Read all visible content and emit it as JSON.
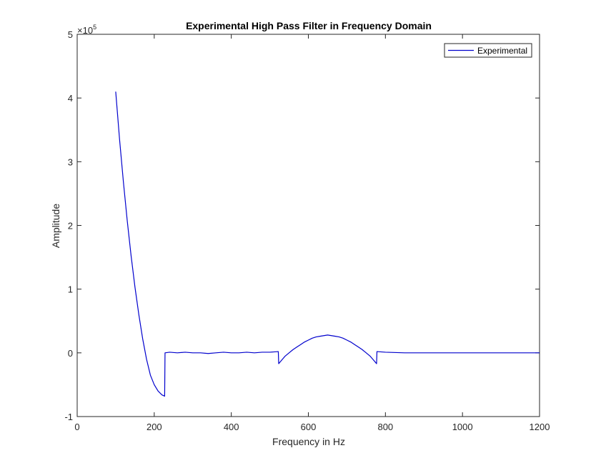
{
  "chart_data": {
    "type": "line",
    "title": "Experimental High Pass Filter in Frequency Domain",
    "xlabel": "Frequency in Hz",
    "ylabel": "Amplitude",
    "y_exponent_label": "×10",
    "y_exponent_power": "5",
    "xlim": [
      0,
      1200
    ],
    "ylim": [
      -1,
      5
    ],
    "x_ticks": [
      0,
      200,
      400,
      600,
      800,
      1000,
      1200
    ],
    "x_tick_labels": [
      "0",
      "200",
      "400",
      "600",
      "800",
      "1000",
      "1200"
    ],
    "y_ticks": [
      -1,
      0,
      1,
      2,
      3,
      4,
      5
    ],
    "y_tick_labels": [
      "-1",
      "0",
      "1",
      "2",
      "3",
      "4",
      "5"
    ],
    "grid": false,
    "legend_position": "top-right",
    "series": [
      {
        "name": "Experimental",
        "color": "#0000cd",
        "x": [
          100,
          110,
          120,
          130,
          140,
          150,
          160,
          170,
          180,
          190,
          200,
          210,
          220,
          227,
          228,
          240,
          260,
          280,
          300,
          320,
          340,
          360,
          380,
          400,
          420,
          440,
          460,
          480,
          500,
          522,
          523,
          530,
          540,
          550,
          560,
          570,
          580,
          590,
          600,
          610,
          620,
          630,
          640,
          650,
          660,
          670,
          680,
          690,
          700,
          710,
          720,
          730,
          740,
          750,
          760,
          770,
          777,
          778,
          800,
          850,
          900,
          950,
          1000,
          1050,
          1100,
          1150,
          1200
        ],
        "y": [
          4.1,
          3.35,
          2.68,
          2.07,
          1.52,
          1.03,
          0.6,
          0.22,
          -0.1,
          -0.35,
          -0.5,
          -0.6,
          -0.66,
          -0.68,
          0.0,
          0.01,
          0.0,
          0.01,
          0.0,
          0.0,
          -0.01,
          0.0,
          0.01,
          0.0,
          0.0,
          0.01,
          0.0,
          0.01,
          0.01,
          0.02,
          -0.17,
          -0.12,
          -0.05,
          0.0,
          0.05,
          0.09,
          0.13,
          0.17,
          0.2,
          0.23,
          0.25,
          0.26,
          0.27,
          0.28,
          0.27,
          0.26,
          0.25,
          0.23,
          0.2,
          0.17,
          0.13,
          0.09,
          0.05,
          0.0,
          -0.05,
          -0.12,
          -0.17,
          0.02,
          0.01,
          0.0,
          0.0,
          0.0,
          0.0,
          0.0,
          0.0,
          0.0,
          0.0
        ]
      }
    ]
  }
}
